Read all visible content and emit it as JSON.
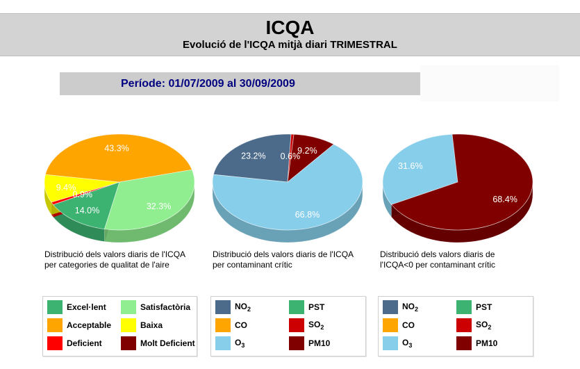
{
  "header": {
    "title": "ICQA",
    "subtitle": "Evolució de l'ICQA mitjà diari TRIMESTRAL"
  },
  "period": {
    "label": "Període: 01/07/2009 al 30/09/2009"
  },
  "charts": [
    {
      "caption_line1": "Distribució dels valors diaris de l'ICQA",
      "caption_line2": "per categories de qualitat de l'aire"
    },
    {
      "caption_line1": "Distribució dels valors diaris de l'ICQA",
      "caption_line2": "per contaminant crític"
    },
    {
      "caption_line1": "Distribució dels valors diaris de",
      "caption_line2": "l'ICQA<0 per contaminant crític"
    }
  ],
  "legends": {
    "categories": [
      {
        "label": "Excel·lent",
        "color": "#3cb371"
      },
      {
        "label": "Satisfactòria",
        "color": "#90ee90"
      },
      {
        "label": "Acceptable",
        "color": "#ffa500"
      },
      {
        "label": "Baixa",
        "color": "#ffff00"
      },
      {
        "label": "Deficient",
        "color": "#ff0000"
      },
      {
        "label": "Molt Deficient",
        "color": "#800000"
      }
    ],
    "pollutants": [
      {
        "label": "NO",
        "sub": "2",
        "color": "#4c6b8a"
      },
      {
        "label": "PST",
        "sub": "",
        "color": "#3cb371"
      },
      {
        "label": "CO",
        "sub": "",
        "color": "#ffa500"
      },
      {
        "label": "SO",
        "sub": "2",
        "color": "#cc0000"
      },
      {
        "label": "O",
        "sub": "3",
        "color": "#87ceeb"
      },
      {
        "label": "PM10",
        "sub": "",
        "color": "#800000"
      }
    ]
  },
  "chart_data": [
    {
      "type": "pie",
      "title": "",
      "slices": [
        {
          "name": "Excel·lent",
          "value": 14.0,
          "label": "14.0%",
          "color": "#3cb371"
        },
        {
          "name": "Deficient",
          "value": 0.9,
          "label": "0.9%",
          "color": "#ff0000"
        },
        {
          "name": "Baixa",
          "value": 9.4,
          "label": "9.4%",
          "color": "#ffff00"
        },
        {
          "name": "Acceptable",
          "value": 43.3,
          "label": "43.3%",
          "color": "#ffa500"
        },
        {
          "name": "Satisfactòria",
          "value": 32.3,
          "label": "32.3%",
          "color": "#90ee90"
        }
      ]
    },
    {
      "type": "pie",
      "title": "",
      "slices": [
        {
          "name": "NO2",
          "value": 23.2,
          "label": "23.2%",
          "color": "#4c6b8a"
        },
        {
          "name": "SO2",
          "value": 0.6,
          "label": "0.6%",
          "color": "#cc0000"
        },
        {
          "name": "PM10",
          "value": 9.2,
          "label": "9.2%",
          "color": "#800000"
        },
        {
          "name": "O3",
          "value": 66.8,
          "label": "66.8%",
          "color": "#87ceeb"
        }
      ]
    },
    {
      "type": "pie",
      "title": "",
      "slices": [
        {
          "name": "O3",
          "value": 31.6,
          "label": "31.6%",
          "color": "#87ceeb"
        },
        {
          "name": "PM10",
          "value": 68.4,
          "label": "68.4%",
          "color": "#800000"
        }
      ]
    }
  ]
}
